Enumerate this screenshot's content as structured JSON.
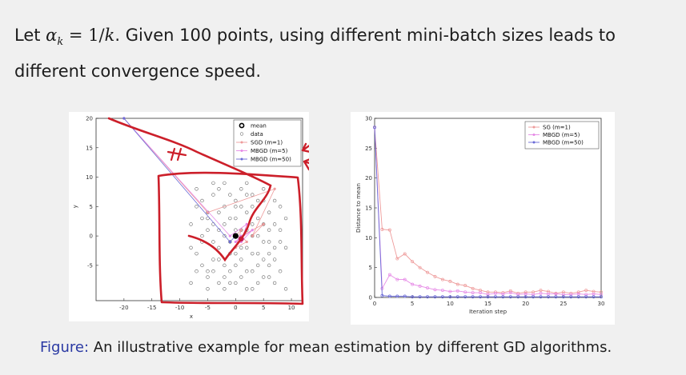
{
  "intro": {
    "prefix": "Let ",
    "math_alpha": "α",
    "math_sub": "k",
    "math_eq": " = 1/",
    "math_k": "k",
    "text": ". Given 100 points, using different mini-batch sizes leads to different convergence speed."
  },
  "caption": {
    "label": "Figure:",
    "text": " An illustrative example for mean estimation by different GD algorithms."
  },
  "colors": {
    "sgd": "#ee9a9a",
    "mbgd5": "#e68ae6",
    "mbgd50": "#6a6ad6",
    "annotation": "#cc1f2a"
  },
  "chart_data": [
    {
      "type": "scatter",
      "title": "",
      "xlabel": "x",
      "ylabel": "y",
      "xlim": [
        -25,
        12
      ],
      "ylim": [
        -11,
        20
      ],
      "xticks": [
        -20,
        -15,
        -10,
        -5,
        0,
        5,
        10
      ],
      "yticks": [
        -5,
        0,
        5,
        10,
        15,
        20
      ],
      "grid": false,
      "legend_position": "top-right",
      "legend": [
        {
          "label": "mean",
          "marker": "bold-circle"
        },
        {
          "label": "data",
          "marker": "circle"
        },
        {
          "label": "SGD (m=1)",
          "marker": "diamond"
        },
        {
          "label": "MBGD (m=5)",
          "marker": "triangle"
        },
        {
          "label": "MBGD (m=50)",
          "marker": "star"
        }
      ],
      "mean": [
        0,
        0
      ],
      "data": [
        [
          -8,
          -8
        ],
        [
          -7,
          5
        ],
        [
          -6,
          6
        ],
        [
          -6,
          -1
        ],
        [
          -5,
          3
        ],
        [
          -5,
          -7
        ],
        [
          -5,
          -9
        ],
        [
          -4,
          2
        ],
        [
          -4,
          7
        ],
        [
          -4,
          -4
        ],
        [
          -3,
          8
        ],
        [
          -3,
          -2
        ],
        [
          -3,
          -8
        ],
        [
          -2,
          5
        ],
        [
          -2,
          9
        ],
        [
          -2,
          -5
        ],
        [
          -1,
          3
        ],
        [
          -1,
          -3
        ],
        [
          -1,
          -6
        ],
        [
          -1,
          7
        ],
        [
          0,
          5
        ],
        [
          0,
          -8
        ],
        [
          0,
          3
        ],
        [
          1,
          -4
        ],
        [
          1,
          8
        ],
        [
          1,
          -7
        ],
        [
          2,
          4
        ],
        [
          2,
          -2
        ],
        [
          2,
          7
        ],
        [
          3,
          0
        ],
        [
          3,
          -6
        ],
        [
          3,
          5
        ],
        [
          4,
          3
        ],
        [
          4,
          -3
        ],
        [
          4,
          -8
        ],
        [
          5,
          2
        ],
        [
          5,
          6
        ],
        [
          5,
          -4
        ],
        [
          6,
          -1
        ],
        [
          6,
          4
        ],
        [
          6,
          -7
        ],
        [
          7,
          2
        ],
        [
          7,
          -4
        ],
        [
          8,
          5
        ],
        [
          8,
          -6
        ],
        [
          9,
          -2
        ],
        [
          9,
          -9
        ],
        [
          -7,
          -3
        ],
        [
          -6,
          -5
        ],
        [
          -4,
          -1
        ],
        [
          -3,
          1
        ],
        [
          -2,
          0
        ],
        [
          -2,
          -9
        ],
        [
          0,
          -5
        ],
        [
          1,
          1
        ],
        [
          2,
          -9
        ],
        [
          3,
          -3
        ],
        [
          4,
          -5
        ],
        [
          5,
          -1
        ],
        [
          7,
          -8
        ],
        [
          -8,
          2
        ],
        [
          -7,
          8
        ],
        [
          -5,
          -6
        ],
        [
          -3,
          4
        ],
        [
          -1,
          -1
        ],
        [
          1,
          -2
        ],
        [
          3,
          2
        ],
        [
          6,
          1
        ],
        [
          8,
          -1
        ],
        [
          -6,
          0
        ],
        [
          -5,
          4
        ],
        [
          -4,
          -6
        ],
        [
          -2,
          2
        ],
        [
          0,
          1
        ],
        [
          2,
          -6
        ],
        [
          4,
          0
        ],
        [
          5,
          -7
        ],
        [
          7,
          6
        ],
        [
          -7,
          -6
        ],
        [
          0,
          6
        ],
        [
          1,
          5
        ],
        [
          6,
          -3
        ],
        [
          -1,
          -8
        ],
        [
          3,
          -9
        ],
        [
          -4,
          9
        ],
        [
          2,
          9
        ],
        [
          5,
          8
        ],
        [
          9,
          3
        ],
        [
          -8,
          -2
        ],
        [
          8,
          1
        ],
        [
          -3,
          -4
        ],
        [
          4,
          6
        ],
        [
          -6,
          3
        ],
        [
          6,
          -5
        ],
        [
          -2,
          -7
        ],
        [
          0,
          -3
        ],
        [
          2,
          1
        ],
        [
          -5,
          1
        ],
        [
          3,
          7
        ],
        [
          7,
          -2
        ]
      ],
      "series": [
        {
          "name": "SGD (m=1)",
          "points": [
            [
              -20,
              20
            ],
            [
              -5,
              4
            ],
            [
              7,
              8
            ],
            [
              3,
              0
            ],
            [
              5,
              2
            ],
            [
              1,
              0
            ],
            [
              2,
              -1
            ],
            [
              0,
              -2
            ],
            [
              1,
              1
            ],
            [
              0,
              0
            ]
          ]
        },
        {
          "name": "MBGD (m=5)",
          "points": [
            [
              -20,
              20
            ],
            [
              -1,
              0
            ],
            [
              2,
              2
            ],
            [
              1,
              -1
            ],
            [
              3,
              1
            ],
            [
              0,
              -1
            ],
            [
              1,
              0
            ],
            [
              0,
              0
            ]
          ]
        },
        {
          "name": "MBGD (m=50)",
          "points": [
            [
              -20,
              20
            ],
            [
              -1,
              -1
            ],
            [
              0,
              0
            ],
            [
              0,
              0
            ]
          ]
        }
      ]
    },
    {
      "type": "line",
      "title": "",
      "xlabel": "Iteration step",
      "ylabel": "Distance to mean",
      "xlim": [
        0,
        30
      ],
      "ylim": [
        0,
        30
      ],
      "xticks": [
        0,
        5,
        10,
        15,
        20,
        25,
        30
      ],
      "yticks": [
        0,
        5,
        10,
        15,
        20,
        25,
        30
      ],
      "grid": false,
      "legend_position": "top-right",
      "x": [
        0,
        1,
        2,
        3,
        4,
        5,
        6,
        7,
        8,
        9,
        10,
        11,
        12,
        13,
        14,
        15,
        16,
        17,
        18,
        19,
        20,
        21,
        22,
        23,
        24,
        25,
        26,
        27,
        28,
        29,
        30
      ],
      "series": [
        {
          "name": "SG (m=1)",
          "values": [
            28.5,
            11.4,
            11.3,
            6.5,
            7.3,
            6.0,
            5.0,
            4.2,
            3.5,
            3.0,
            2.7,
            2.2,
            2.0,
            1.5,
            1.2,
            0.9,
            0.9,
            0.8,
            1.1,
            0.7,
            0.9,
            0.9,
            1.2,
            1.0,
            0.7,
            0.9,
            0.7,
            0.9,
            1.2,
            1.0,
            0.9
          ]
        },
        {
          "name": "MBGD (m=5)",
          "values": [
            28.5,
            1.5,
            3.8,
            3.0,
            3.0,
            2.2,
            1.9,
            1.6,
            1.3,
            1.2,
            1.0,
            1.1,
            0.9,
            0.8,
            0.8,
            0.5,
            0.7,
            0.6,
            0.8,
            0.5,
            0.6,
            0.5,
            0.7,
            0.6,
            0.6,
            0.5,
            0.5,
            0.6,
            0.5,
            0.6,
            0.5
          ]
        },
        {
          "name": "MBGD (m=50)",
          "values": [
            28.5,
            0.3,
            0.2,
            0.2,
            0.2,
            0.1,
            0.1,
            0.1,
            0.1,
            0.1,
            0.1,
            0.1,
            0.1,
            0.1,
            0.1,
            0.1,
            0.1,
            0.1,
            0.1,
            0.1,
            0.1,
            0.1,
            0.1,
            0.1,
            0.1,
            0.1,
            0.1,
            0.1,
            0.1,
            0.1,
            0.1
          ]
        }
      ]
    }
  ]
}
